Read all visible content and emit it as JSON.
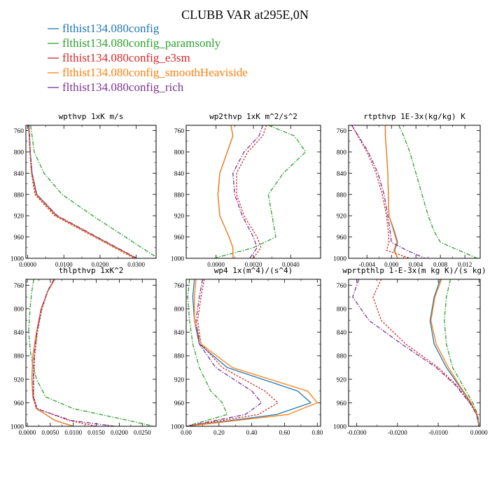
{
  "figure_title": "CLUBB VAR at295E,0N",
  "legend": [
    {
      "name": "flthist134.080config",
      "color": "#1f77b4",
      "dash": "solid"
    },
    {
      "name": "flthist134.080config_paramsonly",
      "color": "#2ca02c",
      "dash": "dashdot"
    },
    {
      "name": "flthist134.080config_e3sm",
      "color": "#d62728",
      "dash": "dot"
    },
    {
      "name": "flthist134.080config_smoothHeaviside",
      "color": "#ff7f0e",
      "dash": "solid"
    },
    {
      "name": "flthist134.080config_rich",
      "color": "#7b3294",
      "dash": "dashdot"
    }
  ],
  "chart_data": [
    {
      "type": "line",
      "title": "wpthvp  1xK m/s",
      "ylim": [
        1000,
        750
      ],
      "yticks": [
        760,
        800,
        840,
        880,
        920,
        960,
        1000
      ],
      "xlim": [
        -0.0005,
        0.0355
      ],
      "xticks": [
        0,
        0.01,
        0.02,
        0.03
      ],
      "xtick_labels": [
        "0.0000",
        "0.0100",
        "0.0200",
        "0.0300"
      ],
      "y": [
        750,
        770,
        800,
        840,
        880,
        920,
        960,
        1000
      ],
      "series": [
        {
          "name": "flthist134.080config",
          "values": [
            0.0003,
            0.0005,
            0.0007,
            0.0012,
            0.0025,
            0.008,
            0.019,
            0.03
          ]
        },
        {
          "name": "flthist134.080config_paramsonly",
          "values": [
            0.0008,
            0.0012,
            0.0018,
            0.0045,
            0.0095,
            0.018,
            0.027,
            0.036
          ]
        },
        {
          "name": "flthist134.080config_e3sm",
          "values": [
            0.0002,
            0.0004,
            0.0006,
            0.001,
            0.002,
            0.0075,
            0.0185,
            0.0295
          ]
        },
        {
          "name": "flthist134.080config_smoothHeaviside",
          "values": [
            0.0003,
            0.0005,
            0.0007,
            0.0011,
            0.0023,
            0.0078,
            0.0188,
            0.0298
          ]
        },
        {
          "name": "flthist134.080config_rich",
          "values": [
            0.0003,
            0.0005,
            0.0007,
            0.0012,
            0.0025,
            0.0082,
            0.0192,
            0.0302
          ]
        }
      ]
    },
    {
      "type": "line",
      "title": "wp2thvp  1xK m^2/s^2",
      "ylim": [
        1000,
        750
      ],
      "yticks": [
        760,
        800,
        840,
        880,
        920,
        960,
        1000
      ],
      "xlim": [
        -0.0016,
        0.0056
      ],
      "xticks": [
        0,
        0.002,
        0.004
      ],
      "xtick_labels": [
        "0.0000",
        "0.0020",
        "0.0040"
      ],
      "y": [
        750,
        770,
        800,
        840,
        880,
        920,
        960,
        980,
        1000
      ],
      "series": [
        {
          "name": "flthist134.080config",
          "values": [
            0.0008,
            0.0009,
            0.0006,
            0.0002,
            0.0001,
            0.0002,
            0.0007,
            0.0009,
            0.0009
          ]
        },
        {
          "name": "flthist134.080config_paramsonly",
          "values": [
            0.0028,
            0.0042,
            0.0048,
            0.0036,
            0.0028,
            0.003,
            0.0032,
            0.002,
            -0.0001
          ]
        },
        {
          "name": "flthist134.080config_e3sm",
          "values": [
            0.0027,
            0.0025,
            0.0017,
            0.0011,
            0.0011,
            0.0015,
            0.0022,
            0.0024,
            0.002
          ]
        },
        {
          "name": "flthist134.080config_smoothHeaviside",
          "values": [
            0.0008,
            0.0009,
            0.0006,
            0.0002,
            0.0001,
            0.0002,
            0.0007,
            0.0009,
            0.0009
          ]
        },
        {
          "name": "flthist134.080config_rich",
          "values": [
            0.0025,
            0.0023,
            0.0015,
            0.0009,
            0.001,
            0.0014,
            0.002,
            0.0022,
            0.0018
          ]
        }
      ]
    },
    {
      "type": "line",
      "title": "rtpthvp  1E-3x(kg/kg) K",
      "ylim": [
        1000,
        750
      ],
      "yticks": [
        760,
        800,
        840,
        880,
        920,
        960,
        1000
      ],
      "xlim": [
        -0.007,
        0.0145
      ],
      "xticks": [
        -0.004,
        0,
        0.004,
        0.008,
        0.012
      ],
      "xtick_labels": [
        "-0.004",
        "0.000",
        "0.004",
        "0.008",
        "0.012"
      ],
      "y": [
        750,
        770,
        800,
        840,
        880,
        920,
        950,
        970,
        985,
        1000
      ],
      "series": [
        {
          "name": "flthist134.080config",
          "values": [
            -0.001,
            -0.001,
            -0.0008,
            -0.0006,
            -0.0005,
            -0.0004,
            0.0005,
            0.001,
            0.0005,
            0.001
          ]
        },
        {
          "name": "flthist134.080config_paramsonly",
          "values": [
            0.0012,
            0.002,
            0.003,
            0.004,
            0.005,
            0.006,
            0.007,
            0.008,
            0.011,
            0.014
          ]
        },
        {
          "name": "flthist134.080config_e3sm",
          "values": [
            -0.0065,
            -0.0055,
            -0.004,
            -0.0025,
            -0.0015,
            -0.0008,
            -0.0005,
            -0.0004,
            -0.0008,
            0.003
          ]
        },
        {
          "name": "flthist134.080config_smoothHeaviside",
          "values": [
            -0.001,
            -0.001,
            -0.0008,
            -0.0006,
            -0.0005,
            -0.0004,
            0.0004,
            0.0009,
            0.0004,
            0.001
          ]
        },
        {
          "name": "flthist134.080config_rich",
          "values": [
            -0.0065,
            -0.0054,
            -0.0038,
            -0.0022,
            -0.0012,
            -0.0006,
            -0.0002,
            0.0,
            0.0025,
            0.0055
          ]
        }
      ]
    },
    {
      "type": "line",
      "title": "thlpthvp  1xK^2",
      "ylim": [
        1000,
        750
      ],
      "yticks": [
        760,
        800,
        840,
        880,
        920,
        960,
        1000
      ],
      "xlim": [
        -0.0003,
        0.028
      ],
      "xticks": [
        0,
        0.005,
        0.01,
        0.015,
        0.02,
        0.025
      ],
      "xtick_labels": [
        "0.0000",
        "0.0050",
        "0.0100",
        "0.0150",
        "0.0200",
        "0.0250"
      ],
      "y": [
        750,
        770,
        800,
        840,
        880,
        920,
        950,
        970,
        990,
        1000
      ],
      "series": [
        {
          "name": "flthist134.080config",
          "values": [
            0.006,
            0.0045,
            0.003,
            0.002,
            0.0012,
            0.001,
            0.0012,
            0.002,
            0.006,
            0.01
          ]
        },
        {
          "name": "flthist134.080config_paramsonly",
          "values": [
            0.0014,
            0.001,
            0.0006,
            0.0003,
            0.0008,
            0.002,
            0.004,
            0.01,
            0.022,
            0.0275
          ]
        },
        {
          "name": "flthist134.080config_e3sm",
          "values": [
            0.0058,
            0.0045,
            0.0032,
            0.0022,
            0.0016,
            0.0014,
            0.0014,
            0.0022,
            0.009,
            0.015
          ]
        },
        {
          "name": "flthist134.080config_smoothHeaviside",
          "values": [
            0.006,
            0.0045,
            0.003,
            0.002,
            0.0012,
            0.001,
            0.0012,
            0.002,
            0.006,
            0.01
          ]
        },
        {
          "name": "flthist134.080config_rich",
          "values": [
            0.0058,
            0.0044,
            0.0031,
            0.0021,
            0.0015,
            0.0013,
            0.0013,
            0.002,
            0.0095,
            0.019
          ]
        }
      ]
    },
    {
      "type": "line",
      "title": "wp4  1x(m^4)/(s^4)",
      "ylim": [
        1000,
        750
      ],
      "yticks": [
        760,
        800,
        840,
        880,
        920,
        960,
        1000
      ],
      "xlim": [
        0,
        0.82
      ],
      "xticks": [
        0,
        0.2,
        0.4,
        0.6,
        0.8
      ],
      "xtick_labels": [
        "0.00",
        "0.20",
        "0.40",
        "0.60",
        "0.80"
      ],
      "y": [
        750,
        780,
        820,
        860,
        900,
        940,
        960,
        980,
        1000
      ],
      "series": [
        {
          "name": "flthist134.080config",
          "values": [
            0.05,
            0.04,
            0.05,
            0.08,
            0.25,
            0.68,
            0.76,
            0.55,
            0.0
          ]
        },
        {
          "name": "flthist134.080config_paramsonly",
          "values": [
            0.02,
            0.01,
            0.02,
            0.04,
            0.08,
            0.15,
            0.22,
            0.25,
            0.0
          ]
        },
        {
          "name": "flthist134.080config_e3sm",
          "values": [
            0.11,
            0.09,
            0.07,
            0.09,
            0.22,
            0.48,
            0.56,
            0.44,
            0.0
          ]
        },
        {
          "name": "flthist134.080config_smoothHeaviside",
          "values": [
            0.06,
            0.05,
            0.05,
            0.09,
            0.28,
            0.74,
            0.8,
            0.62,
            0.0
          ]
        },
        {
          "name": "flthist134.080config_rich",
          "values": [
            0.1,
            0.08,
            0.06,
            0.08,
            0.18,
            0.4,
            0.46,
            0.36,
            0.0
          ]
        }
      ]
    },
    {
      "type": "line",
      "title": "wprtpthlp  1-E-3x(m kg K)/(s kg)",
      "ylim": [
        1000,
        750
      ],
      "yticks": [
        760,
        800,
        840,
        880,
        920,
        960,
        1000
      ],
      "xlim": [
        -0.032,
        0.0003
      ],
      "xticks": [
        -0.03,
        -0.02,
        -0.01,
        0
      ],
      "xtick_labels": [
        "-0.0300",
        "-0.0200",
        "-0.0100",
        "0.0000"
      ],
      "y": [
        750,
        780,
        820,
        860,
        900,
        930,
        960,
        980,
        1000
      ],
      "series": [
        {
          "name": "flthist134.080config",
          "values": [
            -0.0095,
            -0.011,
            -0.012,
            -0.011,
            -0.008,
            -0.005,
            -0.002,
            -0.0005,
            0.0
          ]
        },
        {
          "name": "flthist134.080config_paramsonly",
          "values": [
            -0.007,
            -0.008,
            -0.0085,
            -0.008,
            -0.0065,
            -0.004,
            -0.0015,
            -0.0003,
            0.0
          ]
        },
        {
          "name": "flthist134.080config_e3sm",
          "values": [
            -0.024,
            -0.026,
            -0.024,
            -0.018,
            -0.01,
            -0.0055,
            -0.0022,
            -0.0006,
            0.0
          ]
        },
        {
          "name": "flthist134.080config_smoothHeaviside",
          "values": [
            -0.0092,
            -0.0108,
            -0.0118,
            -0.0105,
            -0.0075,
            -0.0048,
            -0.0019,
            -0.0005,
            0.0
          ]
        },
        {
          "name": "flthist134.080config_rich",
          "values": [
            -0.0295,
            -0.031,
            -0.027,
            -0.019,
            -0.0105,
            -0.0058,
            -0.0023,
            -0.0006,
            0.0
          ]
        }
      ]
    }
  ]
}
